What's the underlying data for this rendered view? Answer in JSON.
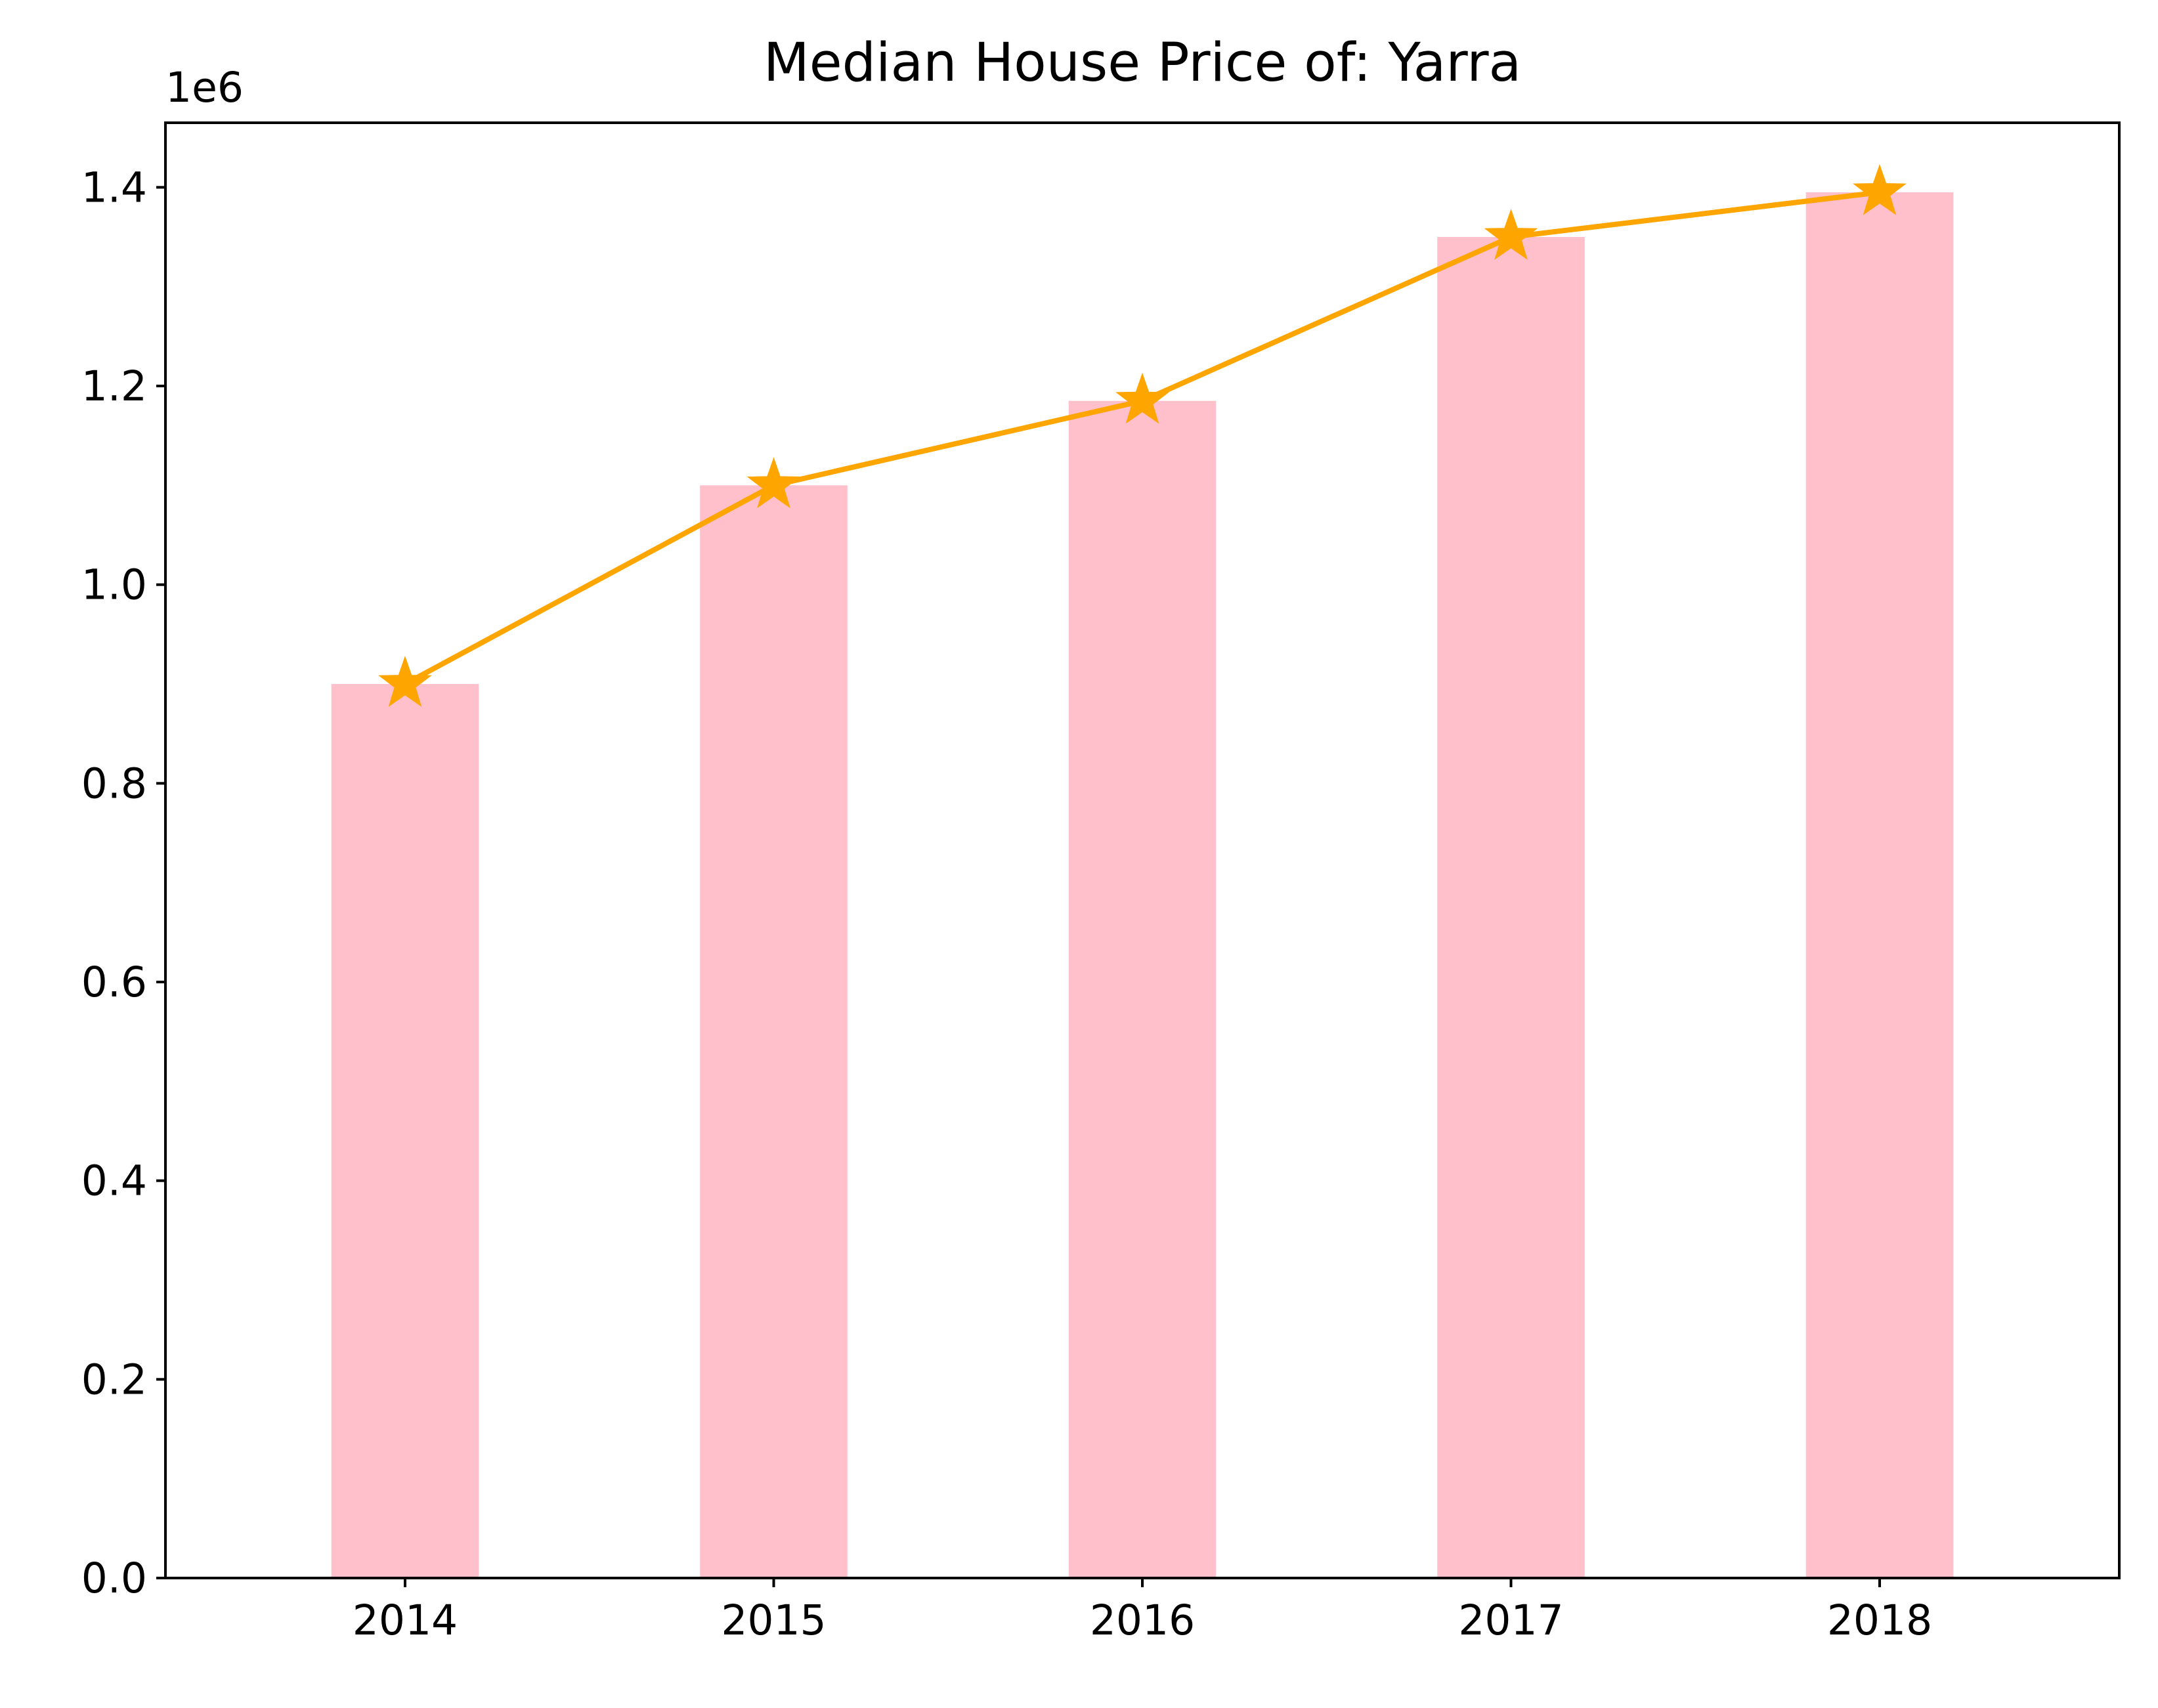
{
  "chart_data": {
    "type": "bar",
    "title": "Median House Price of: Yarra",
    "xlabel": "",
    "ylabel": "",
    "offset_text": "1e6",
    "categories": [
      "2014",
      "2015",
      "2016",
      "2017",
      "2018"
    ],
    "series": [
      {
        "type": "bar",
        "values": [
          900000,
          1100000,
          1185000,
          1350000,
          1395000
        ],
        "color": "#ffc0cb"
      },
      {
        "type": "line",
        "marker": "star",
        "values": [
          900000,
          1100000,
          1185000,
          1350000,
          1395000
        ],
        "color": "#ffa500"
      }
    ],
    "ylim": [
      0,
      1465000
    ],
    "yticks": [
      0,
      200000,
      400000,
      600000,
      800000,
      1000000,
      1200000,
      1400000
    ],
    "ytick_labels": [
      "0.0",
      "0.2",
      "0.4",
      "0.6",
      "0.8",
      "1.0",
      "1.2",
      "1.4"
    ],
    "grid": false,
    "legend": "none"
  }
}
